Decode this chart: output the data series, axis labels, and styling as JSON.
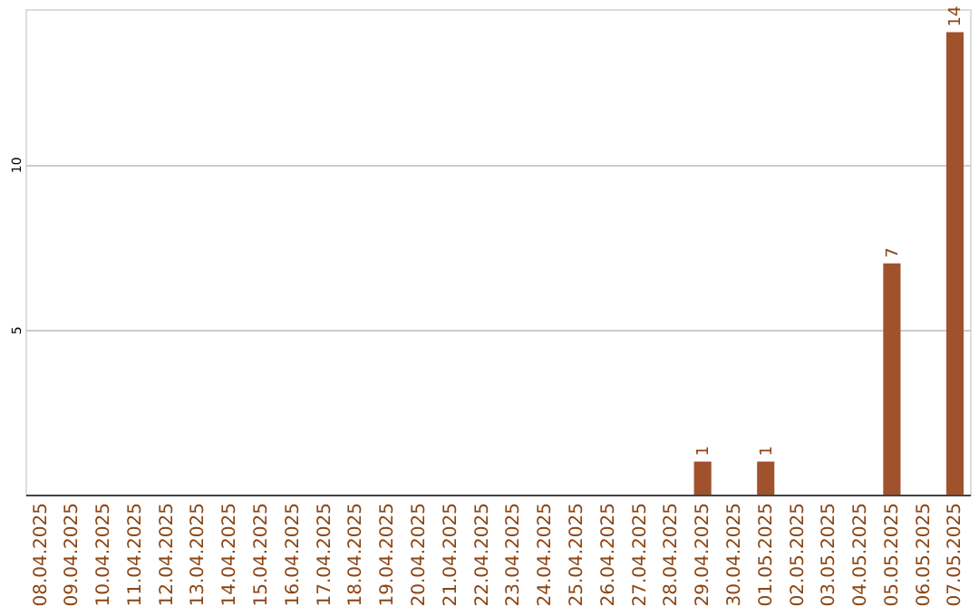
{
  "chart_data": {
    "type": "bar",
    "categories": [
      "08.04.2025",
      "09.04.2025",
      "10.04.2025",
      "11.04.2025",
      "12.04.2025",
      "13.04.2025",
      "14.04.2025",
      "15.04.2025",
      "16.04.2025",
      "17.04.2025",
      "18.04.2025",
      "19.04.2025",
      "20.04.2025",
      "21.04.2025",
      "22.04.2025",
      "23.04.2025",
      "24.04.2025",
      "25.04.2025",
      "26.04.2025",
      "27.04.2025",
      "28.04.2025",
      "29.04.2025",
      "30.04.2025",
      "01.05.2025",
      "02.05.2025",
      "03.05.2025",
      "04.05.2025",
      "05.05.2025",
      "06.05.2025",
      "07.05.2025"
    ],
    "values": [
      0,
      0,
      0,
      0,
      0,
      0,
      0,
      0,
      0,
      0,
      0,
      0,
      0,
      0,
      0,
      0,
      0,
      0,
      0,
      0,
      0,
      1,
      0,
      1,
      0,
      0,
      0,
      7,
      0,
      14
    ],
    "value_labels": [
      null,
      null,
      null,
      null,
      null,
      null,
      null,
      null,
      null,
      null,
      null,
      null,
      null,
      null,
      null,
      null,
      null,
      null,
      null,
      null,
      null,
      "1",
      null,
      "1",
      null,
      null,
      null,
      "7",
      null,
      "14"
    ],
    "color": "#a0522d",
    "ylim": [
      0,
      14.7
    ],
    "yticks": [
      5,
      10
    ],
    "grid": "y"
  }
}
